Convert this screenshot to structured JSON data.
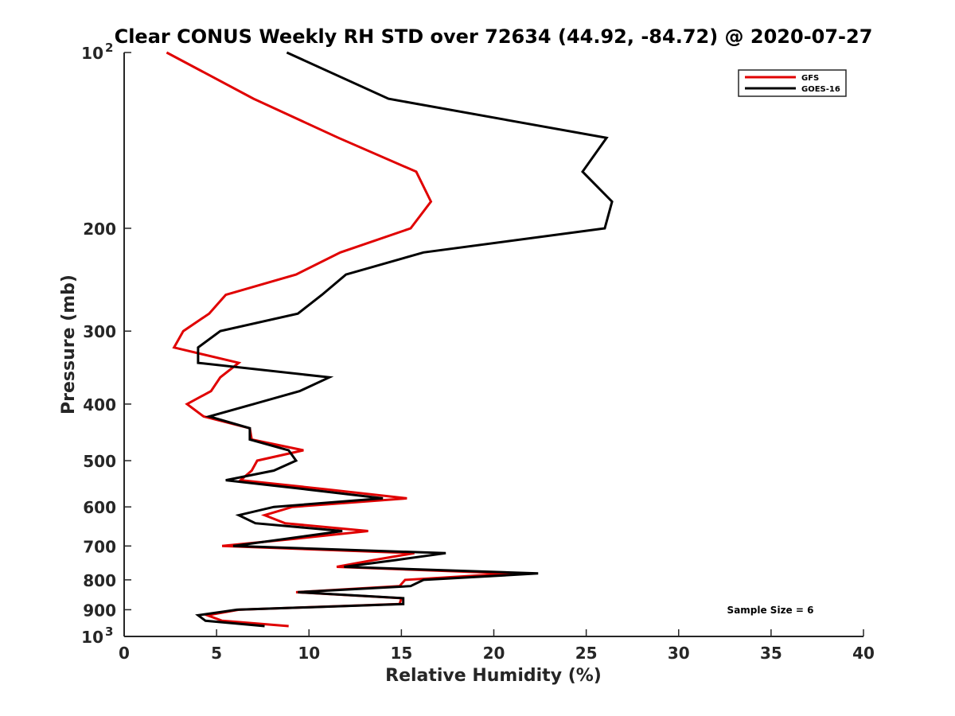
{
  "chart_data": {
    "type": "line",
    "title": "Clear CONUS Weekly RH STD over 72634 (44.92, -84.72) @ 2020-07-27",
    "xlabel": "Relative Humidity (%)",
    "ylabel": "Pressure (mb)",
    "xlim": [
      0,
      40
    ],
    "ylim": [
      100,
      1000
    ],
    "yscale": "log",
    "yreversed": true,
    "grid": false,
    "x_ticks": [
      0,
      5,
      10,
      15,
      20,
      25,
      30,
      35,
      40
    ],
    "x_tick_labels": [
      "0",
      "5",
      "10",
      "15",
      "20",
      "25",
      "30",
      "35",
      "40"
    ],
    "y_ticks": [
      100,
      200,
      300,
      400,
      500,
      600,
      700,
      800,
      900,
      1000
    ],
    "y_tick_labels": [
      "10",
      "200",
      "300",
      "400",
      "500",
      "600",
      "700",
      "800",
      "900",
      "10"
    ],
    "y_tick_superscripts": {
      "100": "2",
      "1000": "3"
    },
    "legend": {
      "placement": "top-right",
      "entries": [
        "GFS",
        "GOES-16"
      ]
    },
    "annotation": "Sample Size = 6",
    "pressure": [
      100,
      120,
      140,
      160,
      180,
      200,
      220,
      240,
      260,
      280,
      300,
      320,
      340,
      360,
      380,
      400,
      420,
      440,
      460,
      480,
      500,
      520,
      540,
      560,
      580,
      600,
      620,
      640,
      660,
      680,
      700,
      720,
      740,
      760,
      780,
      800,
      820,
      840,
      860,
      880,
      900,
      920,
      940,
      960
    ],
    "series": [
      {
        "name": "GFS",
        "color": "#e00000",
        "values": [
          2.3,
          7.0,
          11.6,
          15.8,
          16.6,
          15.5,
          11.7,
          9.3,
          5.5,
          4.6,
          3.2,
          2.7,
          6.2,
          5.2,
          4.7,
          3.4,
          4.3,
          6.8,
          6.9,
          9.7,
          7.2,
          6.9,
          6.3,
          11.0,
          15.3,
          9.1,
          7.6,
          8.7,
          13.2,
          9.3,
          5.3,
          15.7,
          13.5,
          11.5,
          21.0,
          15.2,
          14.9,
          9.3,
          15.0,
          14.9,
          6.2,
          4.5,
          5.3,
          8.9
        ]
      },
      {
        "name": "GOES-16",
        "color": "#000000",
        "values": [
          8.8,
          14.3,
          26.1,
          24.8,
          26.4,
          26.0,
          16.2,
          12.0,
          10.7,
          9.4,
          5.2,
          4.0,
          4.0,
          11.1,
          9.5,
          7.0,
          4.6,
          6.8,
          6.8,
          8.9,
          9.3,
          8.1,
          5.5,
          9.9,
          14.0,
          8.1,
          6.2,
          7.1,
          11.8,
          8.8,
          5.9,
          17.4,
          14.7,
          11.9,
          22.4,
          16.2,
          15.5,
          9.4,
          15.1,
          15.1,
          6.1,
          4.0,
          4.4,
          7.6
        ]
      }
    ]
  }
}
